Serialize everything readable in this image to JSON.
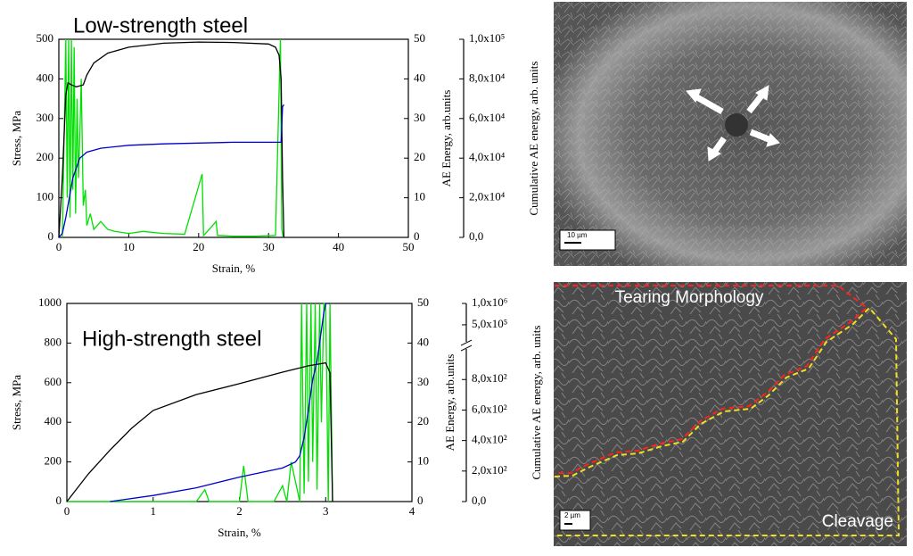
{
  "chart_data": [
    {
      "type": "line",
      "title": "Low-strength steel",
      "x_label": "Strain, %",
      "y_label": "Stress, MPa",
      "y2_label": "AE Energy, arb.units",
      "y3_label": "Cumulative AE energy, arb. units",
      "xlim": [
        0,
        50
      ],
      "xticks": [
        0,
        10,
        20,
        30,
        40,
        50
      ],
      "ylim": [
        0,
        500
      ],
      "yticks": [
        0,
        100,
        200,
        300,
        400,
        500
      ],
      "y2lim": [
        0,
        50
      ],
      "y2ticks": [
        0,
        10,
        20,
        30,
        40,
        50
      ],
      "y3lim": [
        0,
        100000
      ],
      "y3ticks": [
        {
          "value": 0,
          "label": "0,0"
        },
        {
          "value": 20000,
          "label": "2,0x10⁴"
        },
        {
          "value": 40000,
          "label": "4,0x10⁴"
        },
        {
          "value": 60000,
          "label": "6,0x10⁴"
        },
        {
          "value": 80000,
          "label": "8,0x10⁴"
        },
        {
          "value": 100000,
          "label": "1,0x10⁵"
        }
      ],
      "series": [
        {
          "color": "#00e000",
          "axis": "y2",
          "x": [
            0.5,
            0.8,
            1,
            1.2,
            1.4,
            1.6,
            1.8,
            2,
            2.2,
            2.4,
            2.6,
            2.8,
            3,
            3.2,
            3.5,
            3.8,
            4,
            4.5,
            5,
            6,
            7,
            8,
            10,
            12,
            15,
            18,
            20.5,
            20.7,
            21,
            22.5,
            22.7,
            23,
            25,
            28,
            31,
            31.7,
            31.9,
            32.1
          ],
          "values": [
            0,
            30,
            50,
            10,
            50,
            5,
            50,
            12,
            48,
            6,
            35,
            15,
            25,
            40,
            8,
            12,
            3,
            6,
            2,
            4,
            2,
            1.5,
            1,
            1.5,
            1,
            0.8,
            16,
            0.5,
            1,
            4,
            0.5,
            0.5,
            0.3,
            0.3,
            0.5,
            50,
            2,
            0
          ]
        },
        {
          "color": "#000000",
          "axis": "y",
          "x": [
            0,
            0.5,
            1,
            1.3,
            1.8,
            2.5,
            3.5,
            4,
            5,
            7,
            10,
            15,
            20,
            25,
            30,
            31,
            31.5,
            31.8,
            32,
            32.2
          ],
          "values": [
            0,
            150,
            360,
            390,
            385,
            380,
            385,
            410,
            440,
            465,
            480,
            490,
            493,
            492,
            488,
            480,
            460,
            400,
            150,
            0
          ]
        },
        {
          "color": "#0000cc",
          "axis": "y3",
          "x": [
            0,
            0.5,
            1,
            2,
            3,
            4,
            6,
            10,
            15,
            20,
            25,
            31.8,
            32,
            32.2
          ],
          "values": [
            0,
            2000,
            10000,
            30000,
            40000,
            43000,
            45000,
            46500,
            47200,
            47600,
            48000,
            48000,
            66000,
            67000
          ]
        }
      ]
    },
    {
      "type": "line",
      "title": "High-strength steel",
      "x_label": "Strain, %",
      "y_label": "Stress, MPa",
      "y2_label": "AE Energy, arb.units",
      "y3_label": "Cumulative AE energy, arb. units",
      "xlim": [
        0,
        4
      ],
      "xticks": [
        0,
        1,
        2,
        3,
        4
      ],
      "ylim": [
        0,
        1000
      ],
      "yticks": [
        0,
        200,
        400,
        600,
        800,
        1000
      ],
      "y2lim": [
        0,
        50
      ],
      "y2ticks": [
        0,
        10,
        20,
        30,
        40,
        50
      ],
      "y3lim": [
        0,
        1000000
      ],
      "y3break": [
        1000,
        100000
      ],
      "y3ticks": [
        {
          "value": 0,
          "label": "0,0"
        },
        {
          "value": 200,
          "label": "2,0x10²"
        },
        {
          "value": 400,
          "label": "4,0x10²"
        },
        {
          "value": 600,
          "label": "6,0x10²"
        },
        {
          "value": 800,
          "label": "8,0x10²"
        },
        {
          "value": 500000,
          "label": "5,0x10⁵"
        },
        {
          "value": 1000000,
          "label": "1,0x10⁶"
        }
      ],
      "series": [
        {
          "color": "#00e000",
          "axis": "y2",
          "x": [
            0,
            1.5,
            1.6,
            1.65,
            2,
            2.05,
            2.1,
            2.4,
            2.5,
            2.55,
            2.6,
            2.7,
            2.72,
            2.75,
            2.78,
            2.8,
            2.83,
            2.85,
            2.88,
            2.9,
            2.93,
            2.95,
            2.98,
            3,
            3.03,
            3.05,
            3.08
          ],
          "values": [
            0,
            0,
            3,
            0,
            0,
            9,
            0,
            0,
            4,
            0,
            10,
            0,
            50,
            2,
            50,
            5,
            50,
            10,
            50,
            3,
            50,
            20,
            50,
            50,
            0,
            50,
            0
          ]
        },
        {
          "color": "#000000",
          "axis": "y",
          "x": [
            0,
            0.25,
            0.5,
            0.75,
            1,
            1.5,
            2,
            2.5,
            2.8,
            3,
            3.05,
            3.08
          ],
          "values": [
            0,
            140,
            260,
            370,
            460,
            540,
            595,
            653,
            685,
            700,
            650,
            0
          ]
        },
        {
          "color": "#0000cc",
          "axis": "y3",
          "x": [
            0.5,
            1,
            1.5,
            2,
            2.5,
            2.65,
            2.7,
            2.75,
            2.8,
            2.85,
            2.9,
            2.98,
            3,
            3.05
          ],
          "values": [
            0,
            40,
            90,
            160,
            220,
            260,
            300,
            420,
            600,
            800,
            920,
            800000,
            1000000,
            1000000
          ]
        }
      ]
    }
  ],
  "images": [
    {
      "scale_bar": "10 µm"
    },
    {
      "scale_bar": "2 µm",
      "labels": [
        "Tearing Morphology",
        "Cleavage"
      ]
    }
  ]
}
